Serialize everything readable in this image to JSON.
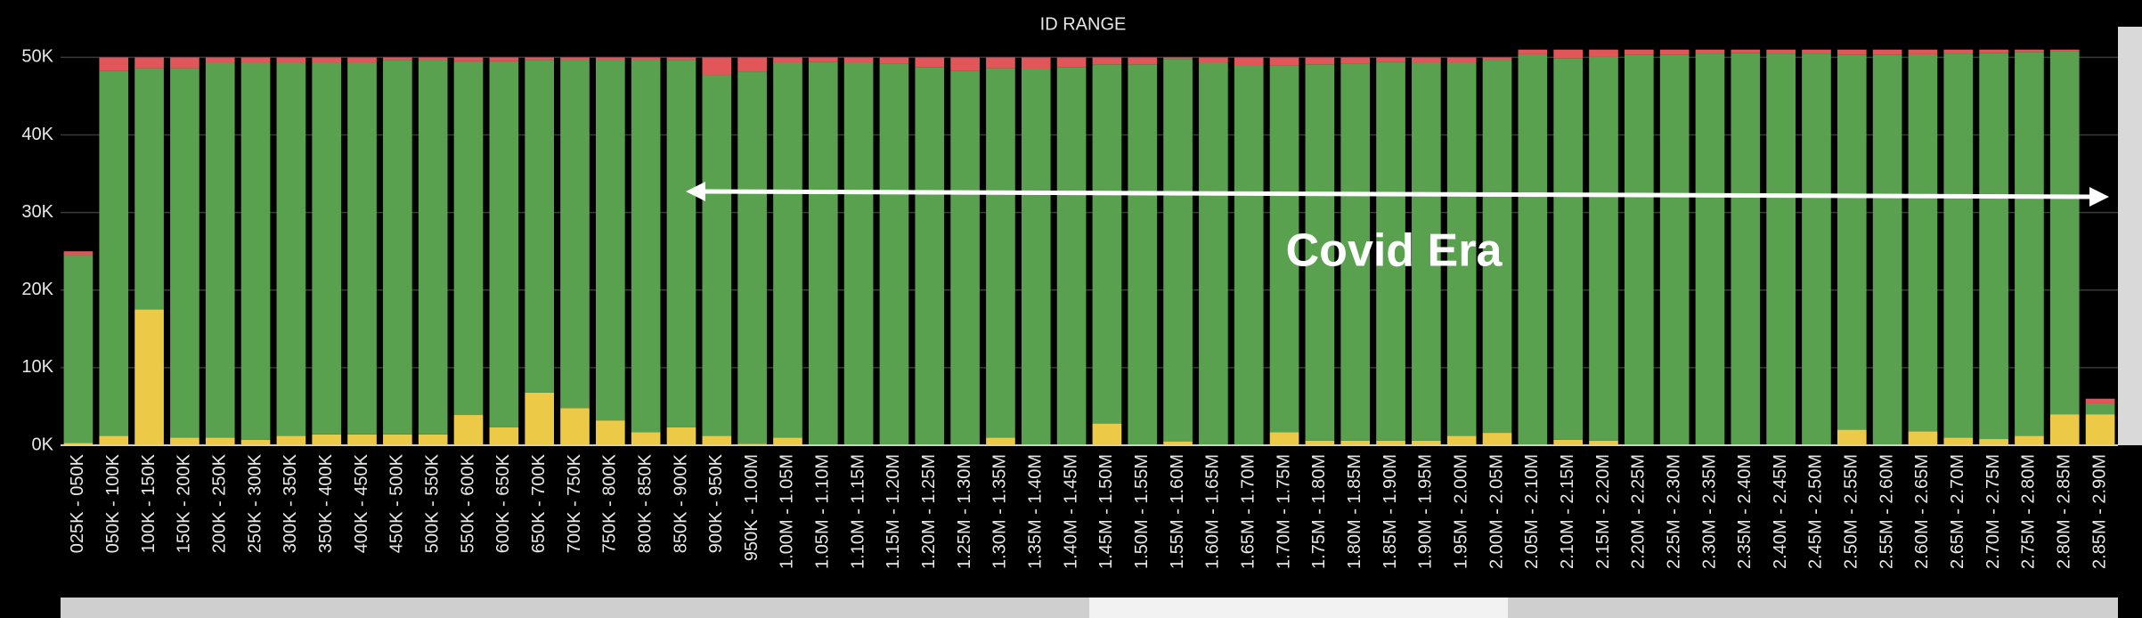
{
  "chart_data": {
    "type": "stacked_bar",
    "title": "ID RANGE",
    "annotation": "Covid Era",
    "categories": [
      "025K - 050K",
      "050K - 100K",
      "100K - 150K",
      "150K - 200K",
      "200K - 250K",
      "250K - 300K",
      "300K - 350K",
      "350K - 400K",
      "400K - 450K",
      "450K - 500K",
      "500K - 550K",
      "550K - 600K",
      "600K - 650K",
      "650K - 700K",
      "700K - 750K",
      "750K - 800K",
      "800K - 850K",
      "850K - 900K",
      "900K - 950K",
      "950K - 1.00M",
      "1.00M - 1.05M",
      "1.05M - 1.10M",
      "1.10M - 1.15M",
      "1.15M - 1.20M",
      "1.20M - 1.25M",
      "1.25M - 1.30M",
      "1.30M - 1.35M",
      "1.35M - 1.40M",
      "1.40M - 1.45M",
      "1.45M - 1.50M",
      "1.50M - 1.55M",
      "1.55M - 1.60M",
      "1.60M - 1.65M",
      "1.65M - 1.70M",
      "1.70M - 1.75M",
      "1.75M - 1.80M",
      "1.80M - 1.85M",
      "1.85M - 1.90M",
      "1.90M - 1.95M",
      "1.95M - 2.00M",
      "2.00M - 2.05M",
      "2.05M - 2.10M",
      "2.10M - 2.15M",
      "2.15M - 2.20M",
      "2.20M - 2.25M",
      "2.25M - 2.30M",
      "2.30M - 2.35M",
      "2.35M - 2.40M",
      "2.40M - 2.45M",
      "2.45M - 2.50M",
      "2.50M - 2.55M",
      "2.55M - 2.60M",
      "2.60M - 2.65M",
      "2.65M - 2.70M",
      "2.70M - 2.75M",
      "2.75M - 2.80M",
      "2.80M - 2.85M",
      "2.85M - 2.90M"
    ],
    "series": [
      {
        "color": "#edc948",
        "values": [
          300,
          1200,
          17500,
          1000,
          1000,
          700,
          1200,
          1400,
          1400,
          1400,
          1400,
          3900,
          2300,
          6800,
          4800,
          3200,
          1700,
          2300,
          1200,
          200,
          1000,
          100,
          100,
          100,
          100,
          100,
          1000,
          100,
          100,
          2800,
          100,
          500,
          100,
          100,
          1700,
          600,
          600,
          600,
          600,
          1200,
          1600,
          100,
          700,
          600,
          100,
          100,
          100,
          100,
          100,
          100,
          2000,
          100,
          1800,
          1000,
          800,
          1200,
          4000,
          4000
        ]
      },
      {
        "color": "#59a14f",
        "values": [
          24200,
          47100,
          31100,
          47600,
          48300,
          48600,
          48100,
          47900,
          47900,
          48200,
          48300,
          45600,
          47200,
          42800,
          44900,
          46500,
          48000,
          47300,
          46500,
          48000,
          48300,
          49300,
          49200,
          49100,
          48600,
          48200,
          47600,
          48400,
          48600,
          46300,
          49000,
          49300,
          49200,
          48800,
          47300,
          48500,
          48600,
          48800,
          48700,
          48100,
          48100,
          50300,
          49200,
          49500,
          50200,
          50200,
          50400,
          50500,
          50400,
          50400,
          48300,
          50200,
          48600,
          49500,
          49800,
          49500,
          46800,
          1400
        ]
      },
      {
        "color": "#e15759",
        "values": [
          500,
          1700,
          1400,
          1400,
          700,
          700,
          700,
          700,
          700,
          400,
          300,
          500,
          500,
          400,
          300,
          300,
          300,
          400,
          2300,
          1800,
          700,
          600,
          700,
          800,
          1300,
          1700,
          1400,
          1500,
          1300,
          900,
          900,
          200,
          700,
          1100,
          1000,
          900,
          800,
          600,
          700,
          700,
          300,
          600,
          1100,
          900,
          700,
          700,
          500,
          400,
          500,
          500,
          700,
          700,
          600,
          500,
          400,
          300,
          200,
          600
        ]
      }
    ],
    "ylim": [
      0,
      52000
    ],
    "yticks": [
      {
        "value": 0,
        "label": "0K"
      },
      {
        "value": 10000,
        "label": "10K"
      },
      {
        "value": 20000,
        "label": "20K"
      },
      {
        "value": 30000,
        "label": "30K"
      },
      {
        "value": 40000,
        "label": "40K"
      },
      {
        "value": 50000,
        "label": "50K"
      }
    ],
    "grid": true
  }
}
